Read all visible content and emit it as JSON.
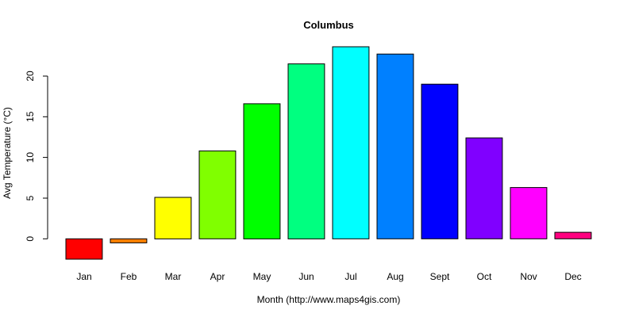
{
  "chart_data": {
    "type": "bar",
    "title": "Columbus",
    "xlabel": "Month (http://www.maps4gis.com)",
    "ylabel": "Avg Temperature (°C)",
    "categories": [
      "Jan",
      "Feb",
      "Mar",
      "Apr",
      "May",
      "Jun",
      "Jul",
      "Aug",
      "Sept",
      "Oct",
      "Nov",
      "Dec"
    ],
    "values": [
      -2.5,
      -0.5,
      5.1,
      10.8,
      16.6,
      21.5,
      23.6,
      22.7,
      19.0,
      12.4,
      6.3,
      0.8
    ],
    "colors": [
      "#FF0000",
      "#FF8000",
      "#FFFF00",
      "#80FF00",
      "#00FF00",
      "#00FF80",
      "#00FFFF",
      "#0080FF",
      "#0000FF",
      "#8000FF",
      "#FF00FF",
      "#FF0080"
    ],
    "ylim": [
      -2.5,
      23.6
    ],
    "yticks": [
      "0",
      "5",
      "10",
      "15",
      "20"
    ],
    "grid": false,
    "legend": "none"
  }
}
